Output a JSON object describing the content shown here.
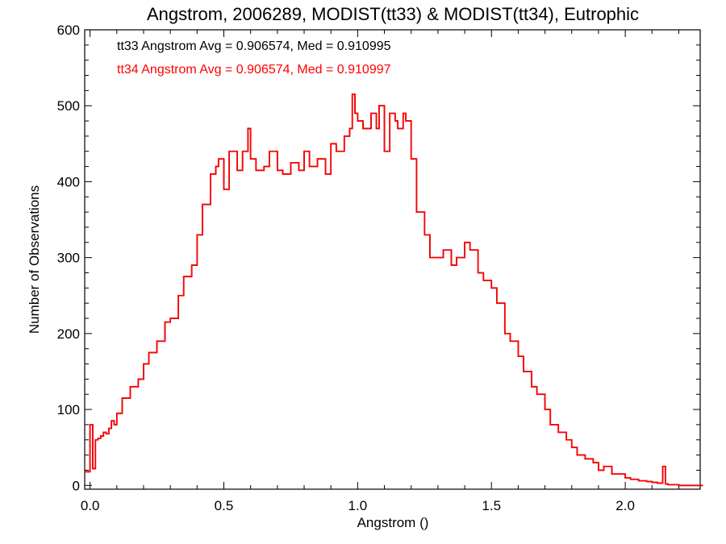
{
  "chart_data": {
    "type": "line",
    "title": "Angstrom, 2006289, MODIST(tt33) & MODIST(tt34), Eutrophic",
    "xlabel": "Angstrom ()",
    "ylabel": "Number of Observations",
    "xlim": [
      -0.02,
      2.28
    ],
    "ylim": [
      -5,
      600
    ],
    "xticks": [
      0.0,
      0.5,
      1.0,
      1.5,
      2.0
    ],
    "xtick_labels": [
      "0.0",
      "0.5",
      "1.0",
      "1.5",
      "2.0"
    ],
    "yticks": [
      0,
      100,
      200,
      300,
      400,
      500,
      600
    ],
    "ytick_labels": [
      "0",
      "100",
      "200",
      "300",
      "400",
      "500",
      "600"
    ],
    "grid": false,
    "annotations": [
      {
        "text": "tt33 Angstrom Avg = 0.906574, Med = 0.910995",
        "color": "#000000"
      },
      {
        "text": "tt34 Angstrom Avg = 0.906574, Med = 0.910997",
        "color": "#ff0000"
      }
    ],
    "series": [
      {
        "color": "#000000",
        "style": "step",
        "bin_width": 0.01,
        "x": [
          -0.02,
          0.0,
          0.01,
          0.02,
          0.03,
          0.04,
          0.05,
          0.06,
          0.07,
          0.08,
          0.09,
          0.1,
          0.12,
          0.15,
          0.18,
          0.2,
          0.22,
          0.25,
          0.28,
          0.3,
          0.33,
          0.35,
          0.38,
          0.4,
          0.42,
          0.45,
          0.47,
          0.48,
          0.5,
          0.52,
          0.55,
          0.57,
          0.59,
          0.6,
          0.62,
          0.65,
          0.67,
          0.7,
          0.72,
          0.75,
          0.78,
          0.8,
          0.82,
          0.85,
          0.88,
          0.9,
          0.92,
          0.95,
          0.97,
          0.98,
          0.99,
          1.0,
          1.02,
          1.05,
          1.07,
          1.08,
          1.1,
          1.12,
          1.14,
          1.15,
          1.17,
          1.18,
          1.2,
          1.22,
          1.25,
          1.27,
          1.3,
          1.32,
          1.35,
          1.37,
          1.4,
          1.42,
          1.45,
          1.47,
          1.5,
          1.52,
          1.55,
          1.57,
          1.6,
          1.62,
          1.65,
          1.67,
          1.7,
          1.72,
          1.75,
          1.78,
          1.8,
          1.82,
          1.85,
          1.88,
          1.9,
          1.92,
          1.95,
          1.98,
          2.0,
          2.02,
          2.05,
          2.08,
          2.1,
          2.12,
          2.14,
          2.15,
          2.16,
          2.2,
          2.28
        ],
        "y": [
          18,
          80,
          22,
          60,
          62,
          65,
          70,
          68,
          75,
          85,
          80,
          95,
          115,
          130,
          140,
          160,
          175,
          190,
          215,
          220,
          250,
          275,
          290,
          330,
          370,
          410,
          420,
          430,
          390,
          440,
          415,
          440,
          470,
          430,
          415,
          420,
          440,
          415,
          410,
          425,
          415,
          440,
          420,
          430,
          410,
          450,
          440,
          460,
          470,
          515,
          490,
          480,
          470,
          490,
          470,
          500,
          440,
          490,
          480,
          470,
          490,
          480,
          430,
          360,
          330,
          300,
          300,
          310,
          290,
          300,
          320,
          310,
          280,
          270,
          260,
          240,
          200,
          190,
          170,
          150,
          130,
          120,
          100,
          80,
          70,
          60,
          50,
          40,
          35,
          30,
          20,
          25,
          15,
          15,
          10,
          8,
          6,
          5,
          4,
          3,
          25,
          2,
          1,
          0,
          0
        ]
      },
      {
        "color": "#ff0000",
        "style": "step",
        "bin_width": 0.01,
        "x": [
          -0.02,
          0.0,
          0.01,
          0.02,
          0.03,
          0.04,
          0.05,
          0.06,
          0.07,
          0.08,
          0.09,
          0.1,
          0.12,
          0.15,
          0.18,
          0.2,
          0.22,
          0.25,
          0.28,
          0.3,
          0.33,
          0.35,
          0.38,
          0.4,
          0.42,
          0.45,
          0.47,
          0.48,
          0.5,
          0.52,
          0.55,
          0.57,
          0.59,
          0.6,
          0.62,
          0.65,
          0.67,
          0.7,
          0.72,
          0.75,
          0.78,
          0.8,
          0.82,
          0.85,
          0.88,
          0.9,
          0.92,
          0.95,
          0.97,
          0.98,
          0.99,
          1.0,
          1.02,
          1.05,
          1.07,
          1.08,
          1.1,
          1.12,
          1.14,
          1.15,
          1.17,
          1.18,
          1.2,
          1.22,
          1.25,
          1.27,
          1.3,
          1.32,
          1.35,
          1.37,
          1.4,
          1.42,
          1.45,
          1.47,
          1.5,
          1.52,
          1.55,
          1.57,
          1.6,
          1.62,
          1.65,
          1.67,
          1.7,
          1.72,
          1.75,
          1.78,
          1.8,
          1.82,
          1.85,
          1.88,
          1.9,
          1.92,
          1.95,
          1.98,
          2.0,
          2.02,
          2.05,
          2.08,
          2.1,
          2.12,
          2.14,
          2.15,
          2.16,
          2.2,
          2.28
        ],
        "y": [
          18,
          80,
          22,
          60,
          62,
          65,
          70,
          68,
          75,
          85,
          80,
          95,
          115,
          130,
          140,
          160,
          175,
          190,
          215,
          220,
          250,
          275,
          290,
          330,
          370,
          410,
          420,
          430,
          390,
          440,
          415,
          440,
          470,
          430,
          415,
          420,
          440,
          415,
          410,
          425,
          415,
          440,
          420,
          430,
          410,
          450,
          440,
          460,
          470,
          515,
          490,
          480,
          470,
          490,
          470,
          500,
          440,
          490,
          480,
          470,
          490,
          480,
          430,
          360,
          330,
          300,
          300,
          310,
          290,
          300,
          320,
          310,
          280,
          270,
          260,
          240,
          200,
          190,
          170,
          150,
          130,
          120,
          100,
          80,
          70,
          60,
          50,
          40,
          35,
          30,
          20,
          25,
          15,
          15,
          10,
          8,
          6,
          5,
          4,
          3,
          25,
          2,
          1,
          0,
          0
        ]
      }
    ]
  }
}
